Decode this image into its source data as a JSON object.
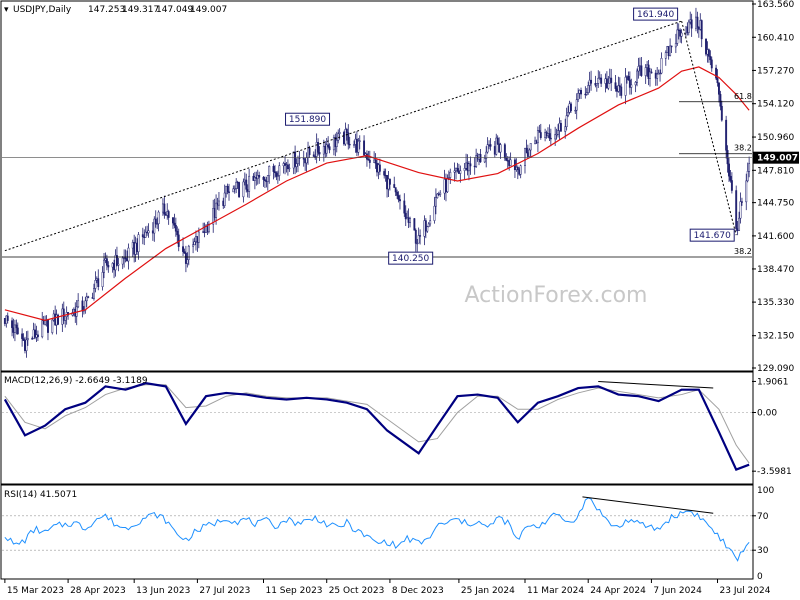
{
  "chart_data": [
    {
      "type": "line",
      "pane": "price",
      "symbol_label": "USDJPY,Daily",
      "ohlc": {
        "open": "147.253",
        "high": "149.317",
        "low": "147.049",
        "close": "149.007"
      },
      "ylim": [
        129.09,
        163.56
      ],
      "y_ticks": [
        "163.560",
        "160.410",
        "157.270",
        "154.120",
        "150.960",
        "147.810",
        "144.750",
        "141.600",
        "138.470",
        "135.330",
        "132.150",
        "129.090"
      ],
      "current_price": "149.007",
      "watermark": "ActionForex.com",
      "annotations": [
        {
          "text": "161.940",
          "x": "2024-06-28",
          "y": 161.94
        },
        {
          "text": "151.890",
          "x": "2023-10-20",
          "y": 151.89
        },
        {
          "text": "140.250",
          "x": "2023-12-28",
          "y": 140.25
        },
        {
          "text": "141.670",
          "x": "2024-08-05",
          "y": 141.67
        }
      ],
      "fib_levels": [
        {
          "label": "61.8",
          "value": 154.3
        },
        {
          "label": "38.2",
          "value": 149.38
        },
        {
          "label": "38.2",
          "value": 139.6
        }
      ],
      "trendlines": [
        {
          "style": "dotted",
          "from": {
            "x": "2023-03-15",
            "y": 140.2
          },
          "to": {
            "x": "2024-06-28",
            "y": 161.94
          }
        },
        {
          "style": "dotted",
          "from": {
            "x": "2024-06-28",
            "y": 161.94
          },
          "to": {
            "x": "2024-08-05",
            "y": 141.67
          }
        }
      ],
      "colors": {
        "candles": "#1f1f6e",
        "moving_average": "#e01010",
        "dotted_line": "#000000",
        "horizontal_line": "#4a4a4a"
      },
      "series": [
        {
          "kind": "close",
          "x": [
            "2023-03-15",
            "2023-03-29",
            "2023-04-12",
            "2023-04-26",
            "2023-05-10",
            "2023-05-24",
            "2023-06-07",
            "2023-06-21",
            "2023-07-05",
            "2023-07-19",
            "2023-08-02",
            "2023-08-16",
            "2023-08-30",
            "2023-09-13",
            "2023-09-27",
            "2023-10-11",
            "2023-10-25",
            "2023-11-08",
            "2023-11-22",
            "2023-12-06",
            "2023-12-28",
            "2024-01-10",
            "2024-01-24",
            "2024-02-07",
            "2024-02-21",
            "2024-03-06",
            "2024-03-20",
            "2024-04-03",
            "2024-04-17",
            "2024-05-01",
            "2024-05-15",
            "2024-05-29",
            "2024-06-12",
            "2024-06-28",
            "2024-07-10",
            "2024-07-24",
            "2024-08-05",
            "2024-08-14"
          ],
          "values": [
            133.8,
            131.5,
            133.0,
            134.2,
            135.0,
            138.8,
            139.4,
            141.8,
            144.2,
            139.5,
            142.5,
            145.6,
            146.3,
            147.4,
            148.6,
            149.2,
            150.2,
            151.0,
            149.3,
            146.8,
            141.0,
            145.5,
            147.6,
            148.8,
            150.2,
            148.0,
            151.2,
            151.6,
            154.6,
            156.6,
            155.3,
            157.0,
            157.2,
            161.4,
            161.7,
            155.2,
            142.2,
            147.8
          ]
        },
        {
          "kind": "moving_average",
          "x": [
            "2023-03-15",
            "2023-04-12",
            "2023-05-10",
            "2023-06-07",
            "2023-07-05",
            "2023-08-02",
            "2023-08-30",
            "2023-09-27",
            "2023-10-25",
            "2023-11-22",
            "2023-12-28",
            "2024-01-24",
            "2024-02-21",
            "2024-03-20",
            "2024-04-17",
            "2024-05-15",
            "2024-06-12",
            "2024-06-28",
            "2024-07-10",
            "2024-07-24",
            "2024-08-05",
            "2024-08-14"
          ],
          "values": [
            134.6,
            133.6,
            134.6,
            137.6,
            140.4,
            142.5,
            144.6,
            146.8,
            148.5,
            149.2,
            147.6,
            146.8,
            147.5,
            149.4,
            151.8,
            154.0,
            155.6,
            157.2,
            157.6,
            156.6,
            155.0,
            153.5
          ]
        }
      ]
    },
    {
      "type": "line",
      "pane": "macd",
      "label": "MACD(12,26,9) -2.6649 -3.1189",
      "y_ticks": [
        "1.9061",
        "0.00",
        "-3.5981"
      ],
      "ylim": [
        -4.2,
        2.3
      ],
      "colors": {
        "macd": "#000080",
        "signal": "#a0a0a0"
      },
      "trendlines": [
        {
          "from": {
            "x": "2024-05-01",
            "y": 1.9
          },
          "to": {
            "x": "2024-07-20",
            "y": 1.5
          }
        }
      ],
      "series": [
        {
          "kind": "macd",
          "x": [
            "2023-03-15",
            "2023-03-29",
            "2023-04-12",
            "2023-04-26",
            "2023-05-10",
            "2023-05-24",
            "2023-06-07",
            "2023-06-21",
            "2023-07-05",
            "2023-07-19",
            "2023-08-02",
            "2023-08-16",
            "2023-08-30",
            "2023-09-13",
            "2023-09-27",
            "2023-10-11",
            "2023-10-25",
            "2023-11-08",
            "2023-11-22",
            "2023-12-06",
            "2023-12-28",
            "2024-01-10",
            "2024-01-24",
            "2024-02-07",
            "2024-02-21",
            "2024-03-06",
            "2024-03-20",
            "2024-04-03",
            "2024-04-17",
            "2024-05-01",
            "2024-05-15",
            "2024-05-29",
            "2024-06-12",
            "2024-06-28",
            "2024-07-10",
            "2024-07-24",
            "2024-08-05",
            "2024-08-14"
          ],
          "values": [
            0.8,
            -1.4,
            -0.8,
            0.2,
            0.6,
            1.6,
            1.4,
            1.8,
            1.6,
            -0.7,
            1.0,
            1.2,
            1.1,
            0.9,
            0.8,
            0.9,
            0.8,
            0.6,
            0.2,
            -1.1,
            -2.5,
            -0.8,
            1.0,
            1.1,
            0.9,
            -0.6,
            0.6,
            1.0,
            1.5,
            1.6,
            1.1,
            1.0,
            0.7,
            1.4,
            1.4,
            -1.2,
            -3.5,
            -3.2
          ]
        },
        {
          "kind": "signal",
          "x": [
            "2023-03-15",
            "2023-03-29",
            "2023-04-12",
            "2023-04-26",
            "2023-05-10",
            "2023-05-24",
            "2023-06-07",
            "2023-06-21",
            "2023-07-05",
            "2023-07-19",
            "2023-08-02",
            "2023-08-16",
            "2023-08-30",
            "2023-09-13",
            "2023-09-27",
            "2023-10-11",
            "2023-10-25",
            "2023-11-08",
            "2023-11-22",
            "2023-12-06",
            "2023-12-28",
            "2024-01-10",
            "2024-01-24",
            "2024-02-07",
            "2024-02-21",
            "2024-03-06",
            "2024-03-20",
            "2024-04-03",
            "2024-04-17",
            "2024-05-01",
            "2024-05-15",
            "2024-05-29",
            "2024-06-12",
            "2024-06-28",
            "2024-07-10",
            "2024-07-24",
            "2024-08-05",
            "2024-08-14"
          ],
          "values": [
            1.0,
            -0.6,
            -1.0,
            -0.2,
            0.3,
            1.1,
            1.5,
            1.7,
            1.7,
            0.3,
            0.4,
            1.0,
            1.2,
            1.0,
            0.9,
            0.9,
            0.9,
            0.7,
            0.5,
            -0.4,
            -1.8,
            -1.6,
            0.0,
            1.0,
            1.0,
            0.2,
            0.2,
            0.8,
            1.2,
            1.5,
            1.3,
            1.1,
            0.9,
            1.1,
            1.4,
            0.2,
            -2.0,
            -3.1
          ]
        }
      ]
    },
    {
      "type": "line",
      "pane": "rsi",
      "label": "RSI(14) 41.5071",
      "y_ticks": [
        "100",
        "70",
        "30",
        "0"
      ],
      "ylim": [
        0,
        100
      ],
      "reference_lines": [
        70,
        30
      ],
      "colors": {
        "rsi": "#1e90ff"
      },
      "trendlines": [
        {
          "from": {
            "x": "2024-04-20",
            "y": 92
          },
          "to": {
            "x": "2024-07-20",
            "y": 73
          }
        }
      ],
      "series": [
        {
          "kind": "rsi",
          "x": [
            "2023-03-15",
            "2023-03-22",
            "2023-03-29",
            "2023-04-05",
            "2023-04-12",
            "2023-04-19",
            "2023-04-26",
            "2023-05-03",
            "2023-05-10",
            "2023-05-17",
            "2023-05-24",
            "2023-05-31",
            "2023-06-07",
            "2023-06-14",
            "2023-06-21",
            "2023-06-28",
            "2023-07-05",
            "2023-07-12",
            "2023-07-19",
            "2023-07-26",
            "2023-08-02",
            "2023-08-09",
            "2023-08-16",
            "2023-08-23",
            "2023-08-30",
            "2023-09-06",
            "2023-09-13",
            "2023-09-20",
            "2023-09-27",
            "2023-10-04",
            "2023-10-11",
            "2023-10-18",
            "2023-10-25",
            "2023-11-01",
            "2023-11-08",
            "2023-11-15",
            "2023-11-22",
            "2023-11-29",
            "2023-12-06",
            "2023-12-13",
            "2023-12-20",
            "2023-12-28",
            "2024-01-03",
            "2024-01-10",
            "2024-01-17",
            "2024-01-24",
            "2024-01-31",
            "2024-02-07",
            "2024-02-14",
            "2024-02-21",
            "2024-02-28",
            "2024-03-06",
            "2024-03-13",
            "2024-03-20",
            "2024-03-27",
            "2024-04-03",
            "2024-04-10",
            "2024-04-17",
            "2024-04-24",
            "2024-05-01",
            "2024-05-08",
            "2024-05-15",
            "2024-05-22",
            "2024-05-29",
            "2024-06-05",
            "2024-06-12",
            "2024-06-19",
            "2024-06-26",
            "2024-07-03",
            "2024-07-10",
            "2024-07-17",
            "2024-07-24",
            "2024-07-31",
            "2024-08-05",
            "2024-08-09",
            "2024-08-14"
          ],
          "values": [
            48,
            35,
            42,
            55,
            50,
            58,
            60,
            62,
            55,
            66,
            70,
            60,
            55,
            62,
            68,
            72,
            65,
            50,
            42,
            52,
            58,
            62,
            68,
            63,
            66,
            60,
            64,
            58,
            66,
            62,
            64,
            68,
            60,
            56,
            62,
            52,
            46,
            38,
            40,
            34,
            44,
            38,
            42,
            58,
            62,
            66,
            60,
            64,
            55,
            68,
            62,
            40,
            60,
            58,
            66,
            72,
            62,
            70,
            92,
            78,
            62,
            56,
            66,
            60,
            58,
            54,
            66,
            72,
            76,
            70,
            58,
            46,
            30,
            20,
            26,
            42
          ]
        }
      ]
    }
  ],
  "x_axis": {
    "tick_labels": [
      "15 Mar 2023",
      "28 Apr 2023",
      "13 Jun 2023",
      "27 Jul 2023",
      "11 Sep 2023",
      "25 Oct 2023",
      "8 Dec 2023",
      "25 Jan 2024",
      "11 Mar 2024",
      "24 Apr 2024",
      "7 Jun 2024",
      "23 Jul 2024"
    ],
    "tick_dates": [
      "2023-03-15",
      "2023-04-28",
      "2023-06-13",
      "2023-07-27",
      "2023-09-11",
      "2023-10-25",
      "2023-12-08",
      "2024-01-25",
      "2024-03-11",
      "2024-04-24",
      "2024-06-07",
      "2024-07-23"
    ],
    "range": [
      "2023-03-13",
      "2024-08-16"
    ]
  }
}
